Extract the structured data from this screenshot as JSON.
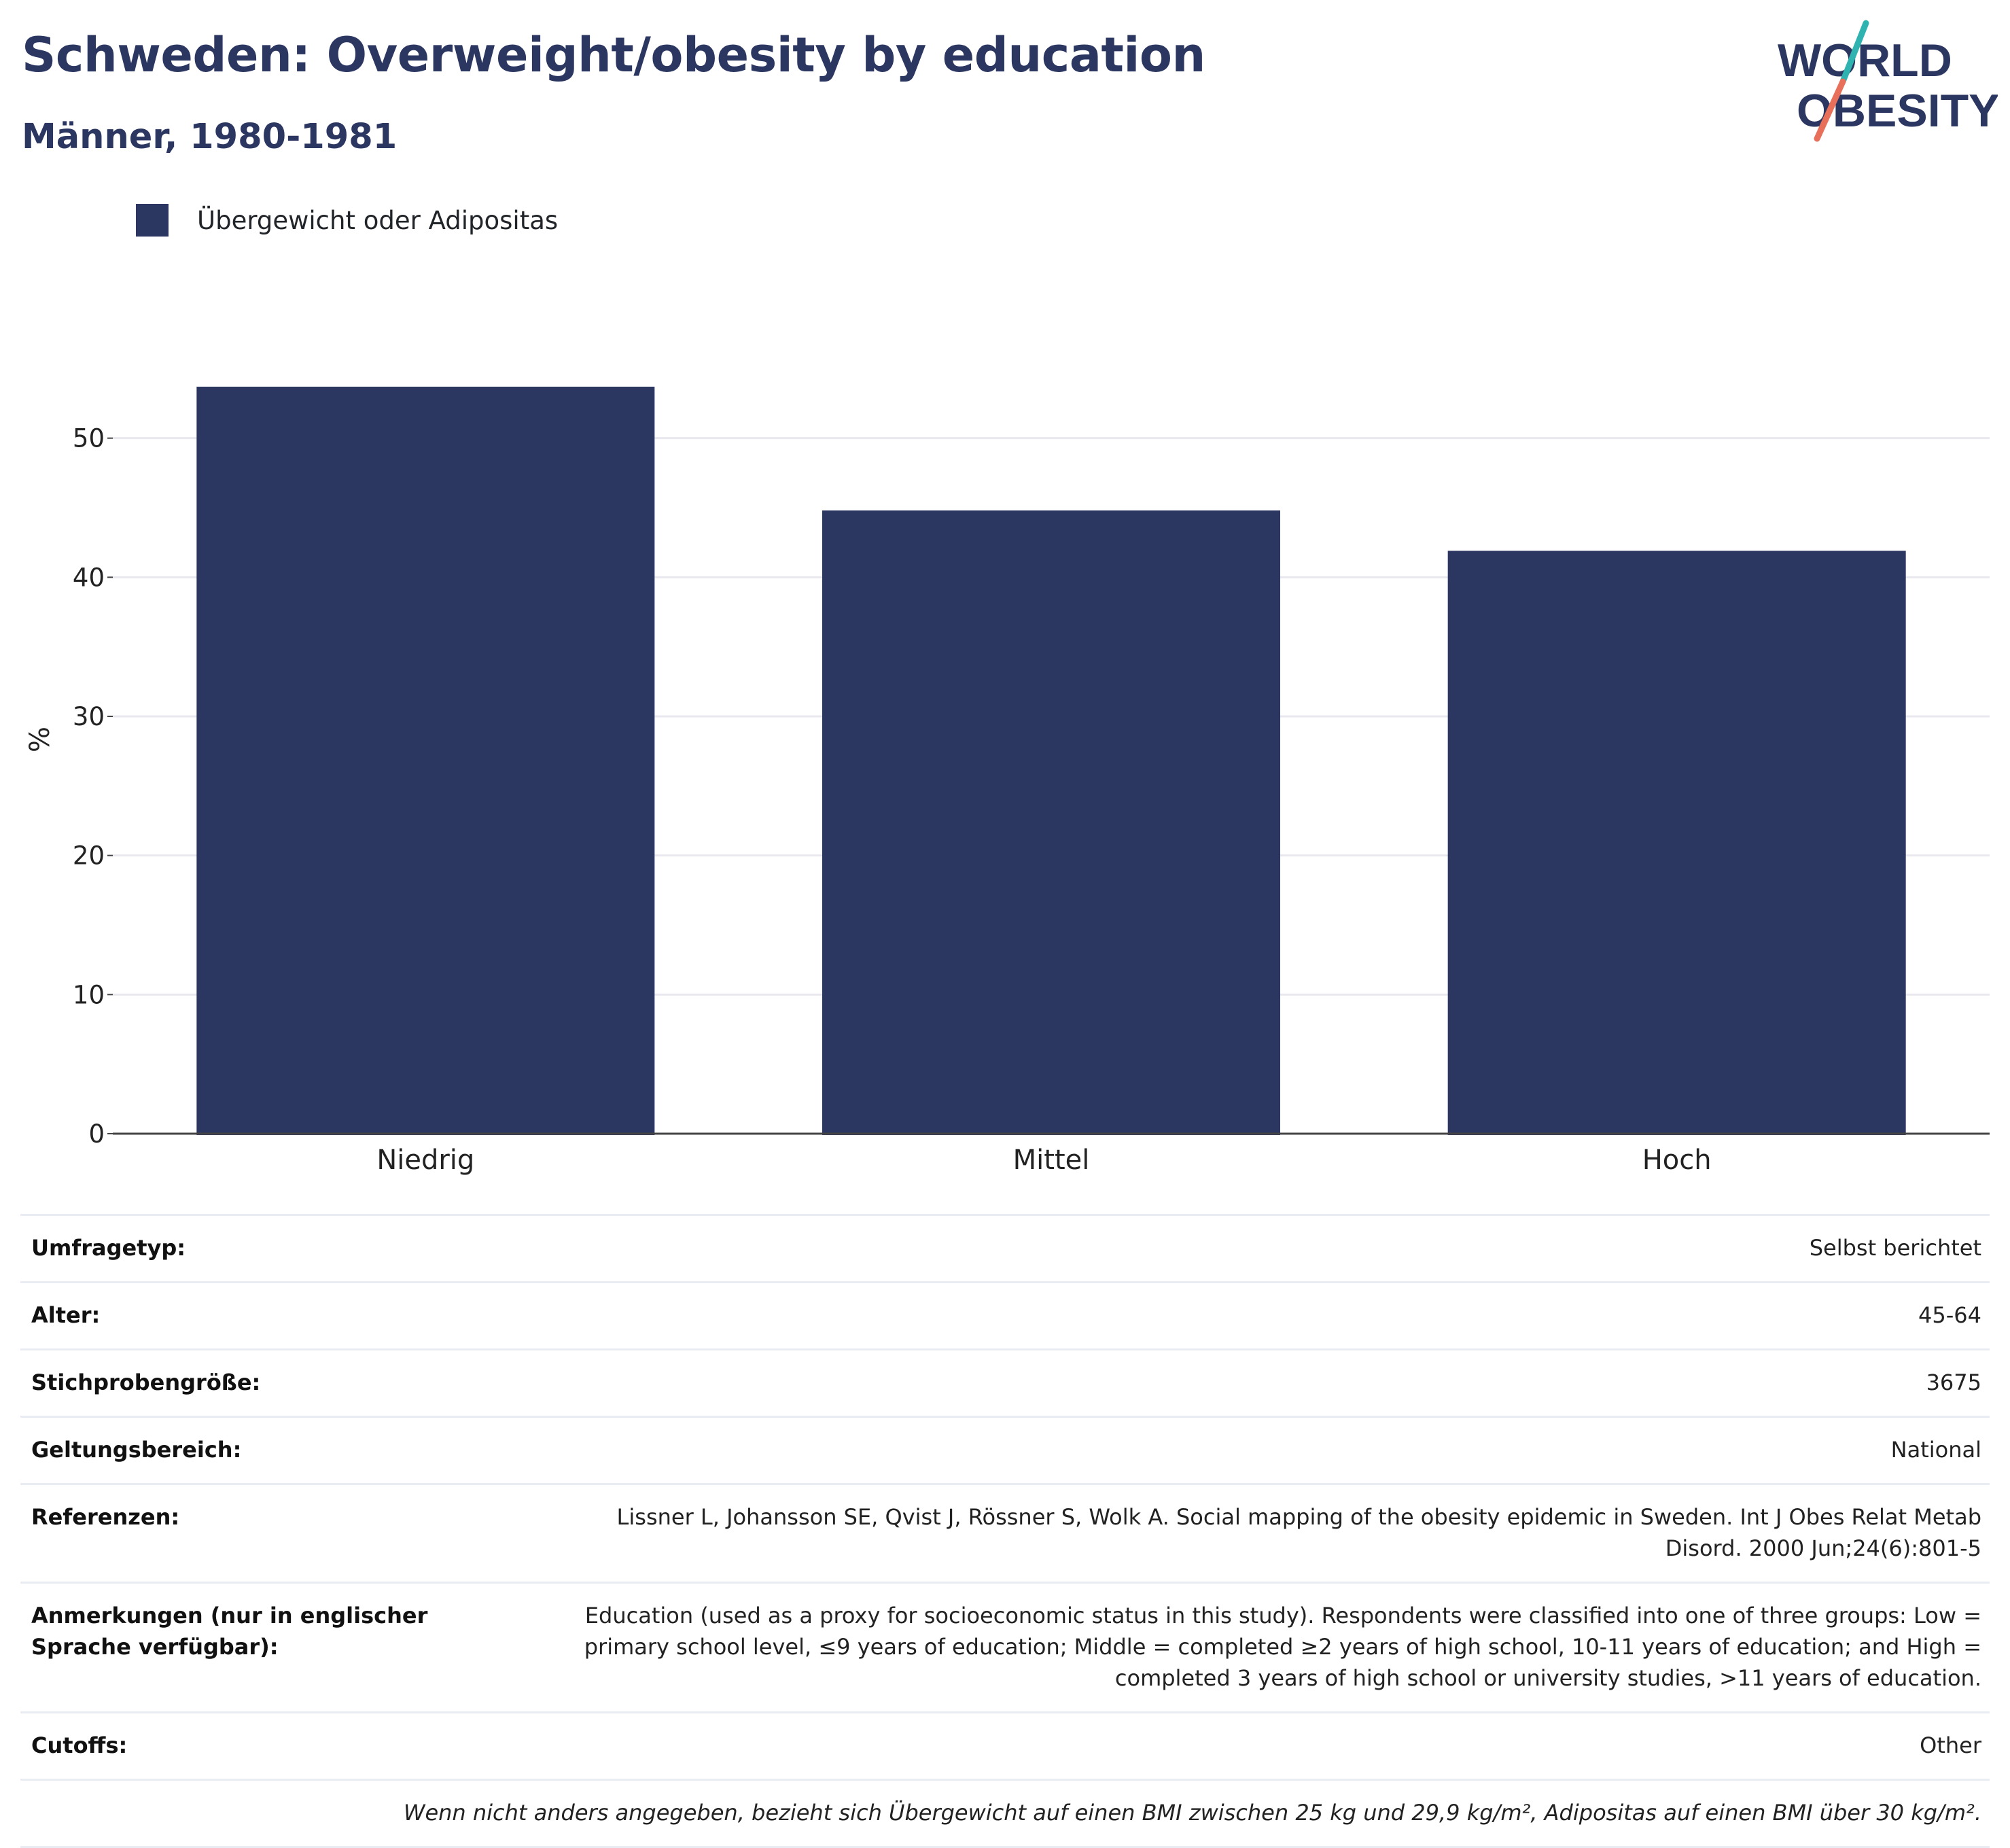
{
  "header": {
    "title": "Schweden: Overweight/obesity by education",
    "subtitle": "Männer, 1980-1981"
  },
  "logo": {
    "line1": "WORLD",
    "line2": "OBESITY",
    "text_color": "#2b3661",
    "accent_colors": [
      "#2eb3b0",
      "#e8705a"
    ]
  },
  "legend": {
    "label": "Übergewicht oder Adipositas",
    "color": "#2b3661"
  },
  "chart_data": {
    "type": "bar",
    "categories": [
      "Niedrig",
      "Mittel",
      "Hoch"
    ],
    "series": [
      {
        "name": "Übergewicht oder Adipositas",
        "values": [
          53.7,
          44.8,
          41.9
        ],
        "color": "#2b3661"
      }
    ],
    "ylabel": "%",
    "xlabel": "",
    "ylim": [
      0,
      60
    ],
    "yticks": [
      0,
      10,
      20,
      30,
      40,
      50
    ],
    "grid": true,
    "legend_position": "top-left"
  },
  "meta": {
    "rows": [
      {
        "label": "Umfragetyp:",
        "value": "Selbst berichtet"
      },
      {
        "label": "Alter:",
        "value": "45-64"
      },
      {
        "label": "Stichprobengröße:",
        "value": "3675"
      },
      {
        "label": "Geltungsbereich:",
        "value": "National"
      },
      {
        "label": "Referenzen:",
        "value": "Lissner L, Johansson SE, Qvist J, Rössner S, Wolk A. Social mapping of the obesity epidemic in Sweden. Int J Obes Relat Metab Disord. 2000 Jun;24(6):801-5"
      },
      {
        "label": "Anmerkungen (nur in englischer Sprache verfügbar):",
        "value": "Education (used as a proxy for socioeconomic status in this study). Respondents were classified into one of three groups: Low = primary school level, ≤9 years of education; Middle = completed ≥2 years of high school, 10-11 years of education; and High = completed 3 years of high school or university studies, >11 years of education."
      },
      {
        "label": "Cutoffs:",
        "value": "Other"
      }
    ],
    "note": "Wenn nicht anders angegeben, bezieht sich Übergewicht auf einen BMI zwischen 25 kg und 29,9 kg/m², Adipositas auf einen BMI über 30 kg/m²."
  }
}
